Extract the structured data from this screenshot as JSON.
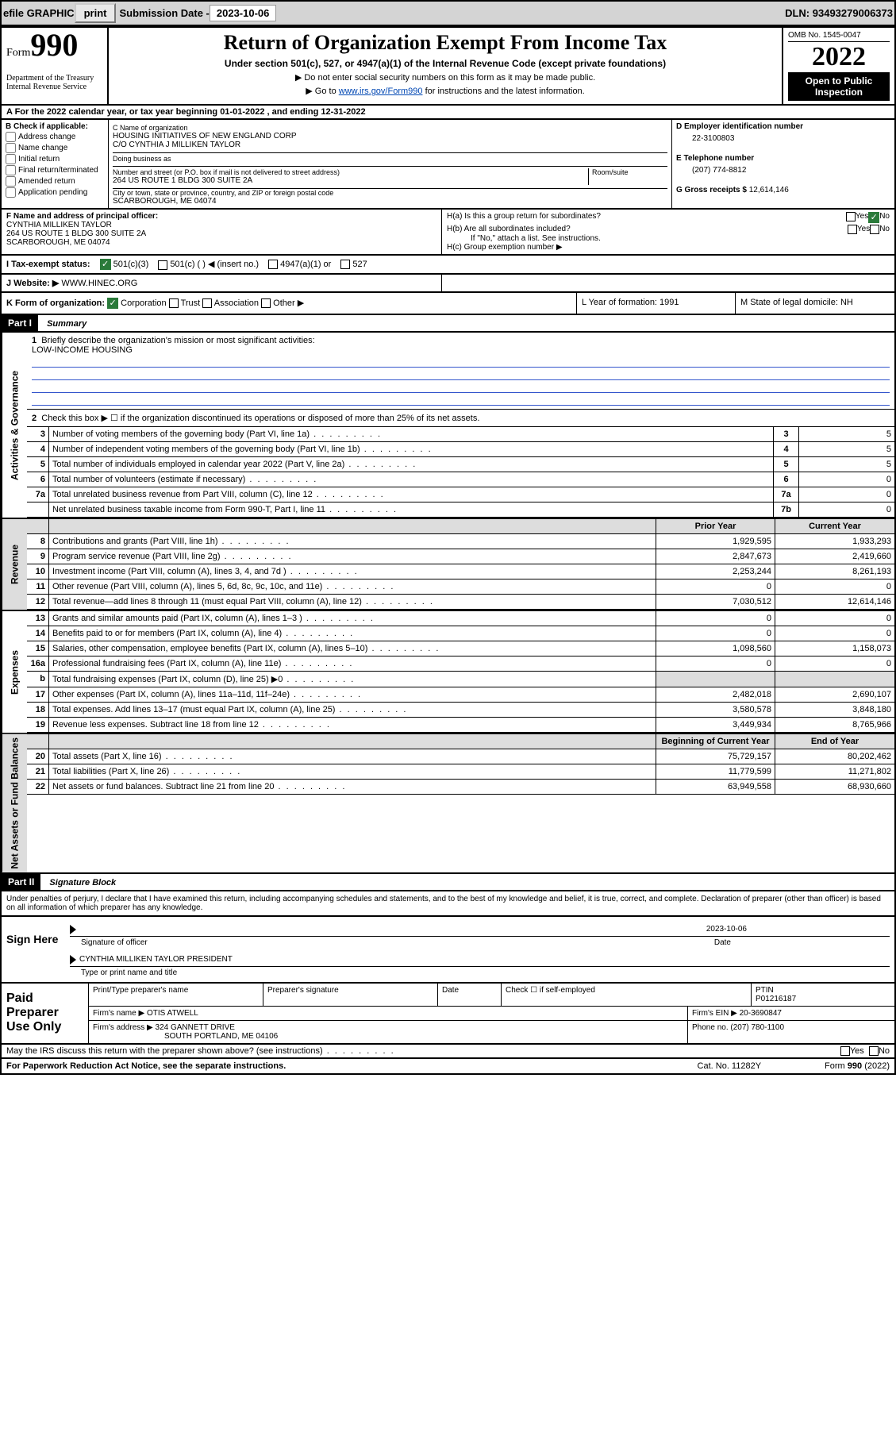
{
  "topbar": {
    "efile": "efile GRAPHIC",
    "print": "print",
    "subdate_label": "Submission Date - ",
    "subdate": "2023-10-06",
    "dln_label": "DLN: ",
    "dln": "93493279006373"
  },
  "header": {
    "form_word": "Form",
    "form_num": "990",
    "dept": "Department of the Treasury",
    "irs": "Internal Revenue Service",
    "title": "Return of Organization Exempt From Income Tax",
    "subtitle": "Under section 501(c), 527, or 4947(a)(1) of the Internal Revenue Code (except private foundations)",
    "note1": "▶ Do not enter social security numbers on this form as it may be made public.",
    "note2_pre": "▶ Go to ",
    "note2_link": "www.irs.gov/Form990",
    "note2_post": " for instructions and the latest information.",
    "omb": "OMB No. 1545-0047",
    "year": "2022",
    "inspect": "Open to Public Inspection"
  },
  "row_a": "A For the 2022 calendar year, or tax year beginning 01-01-2022   , and ending 12-31-2022",
  "section_b": {
    "title": "B Check if applicable:",
    "items": [
      "Address change",
      "Name change",
      "Initial return",
      "Final return/terminated",
      "Amended return",
      "Application pending"
    ]
  },
  "section_c": {
    "name_label": "C Name of organization",
    "name": "HOUSING INITIATIVES OF NEW ENGLAND CORP",
    "co": "C/O CYNTHIA J MILLIKEN TAYLOR",
    "dba_label": "Doing business as",
    "addr_label": "Number and street (or P.O. box if mail is not delivered to street address)",
    "room_label": "Room/suite",
    "addr": "264 US ROUTE 1 BLDG 300 SUITE 2A",
    "city_label": "City or town, state or province, country, and ZIP or foreign postal code",
    "city": "SCARBOROUGH, ME  04074"
  },
  "section_right": {
    "d_label": "D Employer identification number",
    "d_val": "22-3100803",
    "e_label": "E Telephone number",
    "e_val": "(207) 774-8812",
    "g_label": "G Gross receipts $ ",
    "g_val": "12,614,146"
  },
  "row_f": {
    "label": "F  Name and address of principal officer:",
    "name": "CYNTHIA MILLIKEN TAYLOR",
    "addr1": "264 US ROUTE 1 BLDG 300 SUITE 2A",
    "addr2": "SCARBOROUGH, ME  04074"
  },
  "row_h": {
    "ha": "H(a)  Is this a group return for subordinates?",
    "ha_yes": "Yes",
    "ha_no": "No",
    "hb": "H(b)  Are all subordinates included?",
    "hb_note": "If \"No,\" attach a list. See instructions.",
    "hc": "H(c)  Group exemption number ▶"
  },
  "row_i": {
    "label": "I    Tax-exempt status:",
    "opt1": "501(c)(3)",
    "opt2": "501(c) (   ) ◀ (insert no.)",
    "opt3": "4947(a)(1) or",
    "opt4": "527"
  },
  "row_j": {
    "label": "J    Website: ▶ ",
    "val": "WWW.HINEC.ORG"
  },
  "row_k": {
    "label": "K Form of organization:",
    "opts": [
      "Corporation",
      "Trust",
      "Association",
      "Other ▶"
    ],
    "l": "L Year of formation: 1991",
    "m": "M State of legal domicile: NH"
  },
  "part1": {
    "hdr": "Part I",
    "title": "Summary",
    "q1_label": "Briefly describe the organization's mission or most significant activities:",
    "q1_val": "LOW-INCOME HOUSING",
    "q2": "Check this box ▶ ☐  if the organization discontinued its operations or disposed of more than 25% of its net assets."
  },
  "gov_lines": [
    {
      "n": "3",
      "t": "Number of voting members of the governing body (Part VI, line 1a)",
      "c": "3",
      "v": "5"
    },
    {
      "n": "4",
      "t": "Number of independent voting members of the governing body (Part VI, line 1b)",
      "c": "4",
      "v": "5"
    },
    {
      "n": "5",
      "t": "Total number of individuals employed in calendar year 2022 (Part V, line 2a)",
      "c": "5",
      "v": "5"
    },
    {
      "n": "6",
      "t": "Total number of volunteers (estimate if necessary)",
      "c": "6",
      "v": "0"
    },
    {
      "n": "7a",
      "t": "Total unrelated business revenue from Part VIII, column (C), line 12",
      "c": "7a",
      "v": "0"
    },
    {
      "n": "",
      "t": "Net unrelated business taxable income from Form 990-T, Part I, line 11",
      "c": "7b",
      "v": "0"
    }
  ],
  "col_hdrs": {
    "prior": "Prior Year",
    "current": "Current Year"
  },
  "revenue_lines": [
    {
      "n": "8",
      "t": "Contributions and grants (Part VIII, line 1h)",
      "p": "1,929,595",
      "c": "1,933,293"
    },
    {
      "n": "9",
      "t": "Program service revenue (Part VIII, line 2g)",
      "p": "2,847,673",
      "c": "2,419,660"
    },
    {
      "n": "10",
      "t": "Investment income (Part VIII, column (A), lines 3, 4, and 7d )",
      "p": "2,253,244",
      "c": "8,261,193"
    },
    {
      "n": "11",
      "t": "Other revenue (Part VIII, column (A), lines 5, 6d, 8c, 9c, 10c, and 11e)",
      "p": "0",
      "c": "0"
    },
    {
      "n": "12",
      "t": "Total revenue—add lines 8 through 11 (must equal Part VIII, column (A), line 12)",
      "p": "7,030,512",
      "c": "12,614,146"
    }
  ],
  "expense_lines": [
    {
      "n": "13",
      "t": "Grants and similar amounts paid (Part IX, column (A), lines 1–3 )",
      "p": "0",
      "c": "0"
    },
    {
      "n": "14",
      "t": "Benefits paid to or for members (Part IX, column (A), line 4)",
      "p": "0",
      "c": "0"
    },
    {
      "n": "15",
      "t": "Salaries, other compensation, employee benefits (Part IX, column (A), lines 5–10)",
      "p": "1,098,560",
      "c": "1,158,073"
    },
    {
      "n": "16a",
      "t": "Professional fundraising fees (Part IX, column (A), line 11e)",
      "p": "0",
      "c": "0"
    },
    {
      "n": "b",
      "t": "Total fundraising expenses (Part IX, column (D), line 25) ▶0",
      "p": "",
      "c": "",
      "shade": true
    },
    {
      "n": "17",
      "t": "Other expenses (Part IX, column (A), lines 11a–11d, 11f–24e)",
      "p": "2,482,018",
      "c": "2,690,107"
    },
    {
      "n": "18",
      "t": "Total expenses. Add lines 13–17 (must equal Part IX, column (A), line 25)",
      "p": "3,580,578",
      "c": "3,848,180"
    },
    {
      "n": "19",
      "t": "Revenue less expenses. Subtract line 18 from line 12",
      "p": "3,449,934",
      "c": "8,765,966"
    }
  ],
  "net_hdrs": {
    "begin": "Beginning of Current Year",
    "end": "End of Year"
  },
  "net_lines": [
    {
      "n": "20",
      "t": "Total assets (Part X, line 16)",
      "p": "75,729,157",
      "c": "80,202,462"
    },
    {
      "n": "21",
      "t": "Total liabilities (Part X, line 26)",
      "p": "11,779,599",
      "c": "11,271,802"
    },
    {
      "n": "22",
      "t": "Net assets or fund balances. Subtract line 21 from line 20",
      "p": "63,949,558",
      "c": "68,930,660"
    }
  ],
  "part2": {
    "hdr": "Part II",
    "title": "Signature Block"
  },
  "sig_intro": "Under penalties of perjury, I declare that I have examined this return, including accompanying schedules and statements, and to the best of my knowledge and belief, it is true, correct, and complete. Declaration of preparer (other than officer) is based on all information of which preparer has any knowledge.",
  "sign": {
    "label": "Sign Here",
    "sig_label": "Signature of officer",
    "date": "2023-10-06",
    "date_label": "Date",
    "name": "CYNTHIA MILLIKEN TAYLOR  PRESIDENT",
    "name_label": "Type or print name and title"
  },
  "paid": {
    "label": "Paid Preparer Use Only",
    "r1": {
      "c1": "Print/Type preparer's name",
      "c2": "Preparer's signature",
      "c3": "Date",
      "c4_chk": "Check ☐ if self-employed",
      "c5_lbl": "PTIN",
      "c5_val": "P01216187"
    },
    "r2": {
      "firm_lbl": "Firm's name    ▶ ",
      "firm": "OTIS ATWELL",
      "ein_lbl": "Firm's EIN ▶ ",
      "ein": "20-3690847"
    },
    "r3": {
      "addr_lbl": "Firm's address ▶ ",
      "addr1": "324 GANNETT DRIVE",
      "addr2": "SOUTH PORTLAND, ME  04106",
      "ph_lbl": "Phone no. ",
      "ph": "(207) 780-1100"
    }
  },
  "discuss": {
    "q": "May the IRS discuss this return with the preparer shown above? (see instructions)",
    "yes": "Yes",
    "no": "No"
  },
  "footer": {
    "l": "For Paperwork Reduction Act Notice, see the separate instructions.",
    "m": "Cat. No. 11282Y",
    "r": "Form 990 (2022)"
  },
  "vlabels": {
    "gov": "Activities & Governance",
    "rev": "Revenue",
    "exp": "Expenses",
    "net": "Net Assets or Fund Balances"
  }
}
